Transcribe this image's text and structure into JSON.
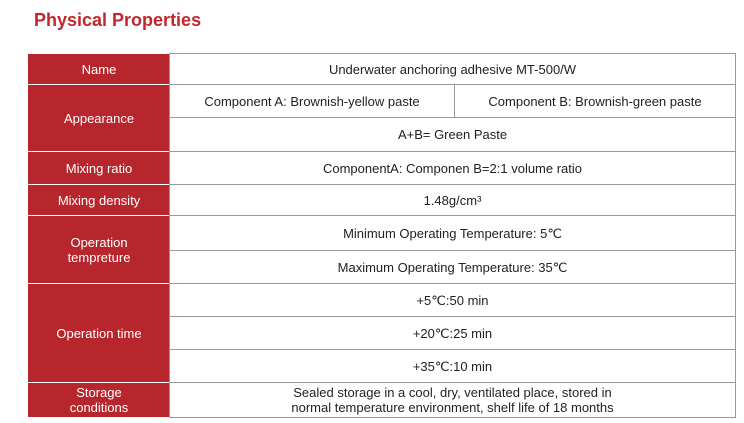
{
  "title": "Physical Properties",
  "table": {
    "rows": [
      {
        "label": "Name",
        "cells": [
          "Underwater anchoring adhesive  MT-500/W"
        ]
      },
      {
        "label": "Appearance",
        "cells": [
          "Component A: Brownish-yellow paste",
          "Component B: Brownish-green paste",
          "A+B= Green Paste"
        ]
      },
      {
        "label": "Mixing ratio",
        "cells": [
          "ComponentA: Componen B=2:1 volume ratio"
        ]
      },
      {
        "label": "Mixing density",
        "cells": [
          "1.48g/cm³"
        ]
      },
      {
        "label": "Operation tempreture",
        "cells": [
          "Minimum Operating Temperature: 5℃",
          "Maximum Operating Temperature: 35℃"
        ]
      },
      {
        "label": "Operation time",
        "cells": [
          "+5℃:50 min",
          "+20℃:25 min",
          "+35℃:10 min"
        ]
      },
      {
        "label": "Storage conditions",
        "cells": [
          "Sealed storage in a cool, dry, ventilated place, stored in",
          "normal temperature environment, shelf life of 18 months"
        ]
      }
    ]
  }
}
